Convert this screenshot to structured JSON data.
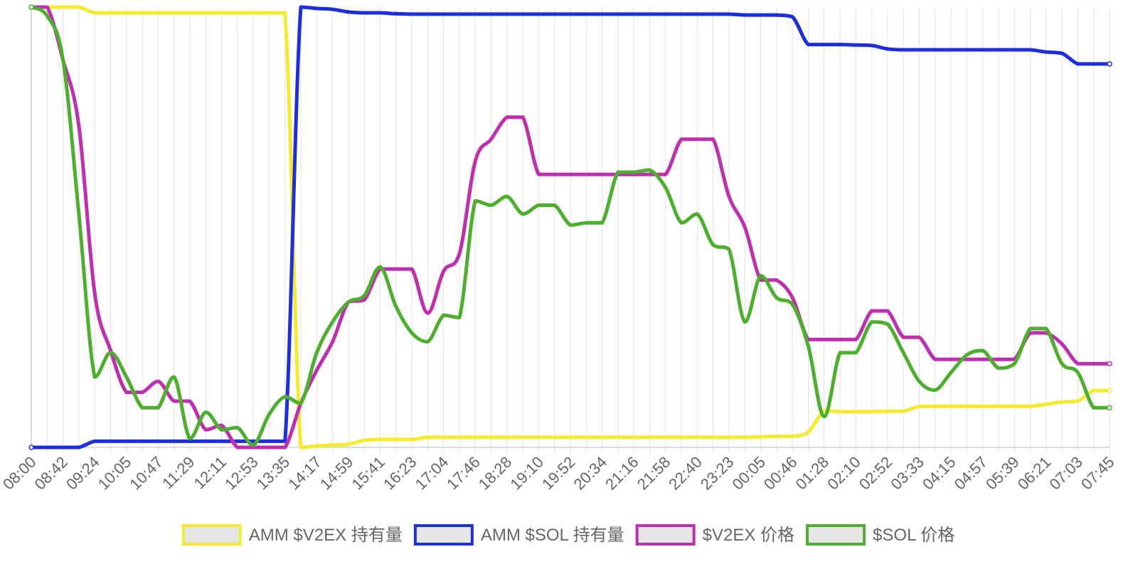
{
  "chart_data": {
    "type": "line",
    "x": [
      "08:00",
      "08:21",
      "08:42",
      "09:03",
      "09:24",
      "09:44",
      "10:05",
      "10:26",
      "10:47",
      "11:08",
      "11:29",
      "11:50",
      "12:11",
      "12:32",
      "12:53",
      "13:14",
      "13:35",
      "13:56",
      "14:17",
      "14:38",
      "14:59",
      "15:20",
      "15:41",
      "16:02",
      "16:23",
      "16:44",
      "17:04",
      "17:25",
      "17:46",
      "18:07",
      "18:28",
      "18:49",
      "19:10",
      "19:31",
      "19:52",
      "20:13",
      "20:34",
      "20:55",
      "21:16",
      "21:37",
      "21:58",
      "22:19",
      "22:40",
      "23:01",
      "23:23",
      "23:44",
      "00:05",
      "00:26",
      "00:46",
      "01:07",
      "01:28",
      "01:49",
      "02:10",
      "02:31",
      "02:52",
      "03:13",
      "03:33",
      "03:54",
      "04:15",
      "04:36",
      "04:57",
      "05:18",
      "05:39",
      "06:00",
      "06:21",
      "06:42",
      "07:03",
      "07:24",
      "07:45"
    ],
    "x_tick_labels": [
      "08:00",
      "08:42",
      "09:24",
      "10:05",
      "10:47",
      "11:29",
      "12:11",
      "12:53",
      "13:35",
      "14:17",
      "14:59",
      "15:41",
      "16:23",
      "17:04",
      "17:46",
      "18:28",
      "19:10",
      "19:52",
      "20:34",
      "21:16",
      "21:58",
      "22:40",
      "23:23",
      "00:05",
      "00:46",
      "01:28",
      "02:10",
      "02:52",
      "03:33",
      "04:15",
      "04:57",
      "05:39",
      "06:21",
      "07:03",
      "07:45"
    ],
    "ylim": [
      0,
      100
    ],
    "y_axis_labels_shown": false,
    "grid": "vertical",
    "legend": "bottom-center",
    "series": [
      {
        "name": "AMM $V2EX 持有量",
        "color": "#f5ea2d",
        "values": [
          100,
          100,
          100,
          100,
          98.7,
          98.7,
          98.7,
          98.7,
          98.7,
          98.7,
          98.7,
          98.7,
          98.7,
          98.7,
          98.7,
          98.7,
          98.7,
          0,
          0.3,
          0.5,
          0.7,
          1.6,
          1.8,
          1.8,
          1.8,
          2.3,
          2.3,
          2.3,
          2.3,
          2.3,
          2.3,
          2.3,
          2.3,
          2.3,
          2.3,
          2.3,
          2.3,
          2.3,
          2.3,
          2.3,
          2.3,
          2.3,
          2.3,
          2.3,
          2.3,
          2.3,
          2.4,
          2.5,
          2.5,
          3.5,
          8.3,
          8.1,
          8.1,
          8.1,
          8.2,
          8.2,
          9.3,
          9.3,
          9.3,
          9.3,
          9.3,
          9.3,
          9.3,
          9.3,
          9.8,
          10.3,
          10.5,
          12.9,
          12.9
        ]
      },
      {
        "name": "AMM $SOL 持有量",
        "color": "#1d2ee0",
        "values": [
          0,
          0,
          0,
          0,
          1.4,
          1.4,
          1.4,
          1.4,
          1.4,
          1.4,
          1.4,
          1.4,
          1.4,
          1.4,
          1.4,
          1.4,
          1.4,
          100,
          99.7,
          99.5,
          98.9,
          98.7,
          98.7,
          98.5,
          98.4,
          98.4,
          98.4,
          98.4,
          98.4,
          98.4,
          98.4,
          98.4,
          98.4,
          98.4,
          98.4,
          98.4,
          98.4,
          98.4,
          98.4,
          98.4,
          98.4,
          98.4,
          98.4,
          98.4,
          98.4,
          98.2,
          98.2,
          98.2,
          97.8,
          91.5,
          91.5,
          91.5,
          91.4,
          91.3,
          90.5,
          90.3,
          90.3,
          90.3,
          90.3,
          90.3,
          90.3,
          90.3,
          90.3,
          90.3,
          89.8,
          89.5,
          87.1,
          87.1,
          87.1
        ]
      },
      {
        "name": "$V2EX 价格",
        "color": "#c02eb0",
        "values": [
          100,
          100,
          88,
          73,
          35,
          22,
          12.5,
          12.5,
          15,
          10.5,
          10.5,
          4,
          5,
          0,
          0,
          0,
          0,
          10,
          17.5,
          24,
          33,
          33.5,
          40.5,
          40.5,
          40.5,
          30.5,
          40,
          44,
          65,
          70,
          75,
          75,
          62,
          62,
          62,
          62,
          62,
          62,
          62,
          62,
          62,
          70,
          70,
          70,
          57,
          50,
          38,
          38,
          34,
          24.5,
          24.5,
          24.5,
          24.5,
          31,
          31,
          25,
          25,
          20,
          20,
          20,
          20,
          20,
          20,
          26,
          26,
          23.5,
          19,
          19,
          19
        ]
      },
      {
        "name": "$SOL 价格",
        "color": "#4caf2d",
        "values": [
          100,
          98,
          88,
          53,
          16,
          21.5,
          16,
          9,
          9,
          16,
          2,
          8,
          4,
          4.5,
          0.5,
          7.5,
          11.5,
          10,
          21.5,
          28.5,
          33,
          34.5,
          41,
          32,
          26,
          24,
          30,
          29.5,
          56,
          55,
          57,
          53,
          55,
          55,
          50.5,
          51,
          51,
          62.5,
          62.5,
          63,
          59,
          51,
          53,
          46,
          45,
          28.5,
          39,
          34,
          32.5,
          23,
          7,
          21.5,
          21.5,
          28.5,
          28,
          21.5,
          15,
          13,
          17,
          21,
          22,
          18,
          19,
          27,
          27,
          19,
          17,
          9,
          9
        ]
      }
    ]
  }
}
